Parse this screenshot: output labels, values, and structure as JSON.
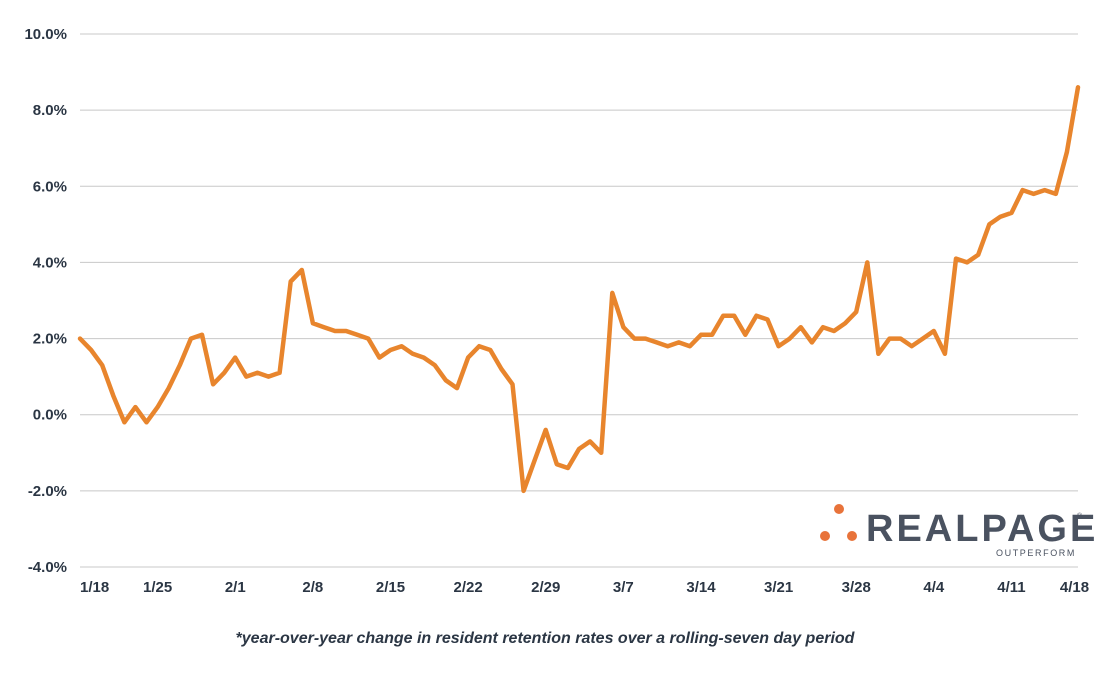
{
  "chart_data": {
    "type": "line",
    "x_tick_labels": [
      "1/18",
      "1/25",
      "2/1",
      "2/8",
      "2/15",
      "2/22",
      "2/29",
      "3/7",
      "3/14",
      "3/21",
      "3/28",
      "4/4",
      "4/11",
      "4/18"
    ],
    "y_tick_labels": [
      "10.0%",
      "8.0%",
      "6.0%",
      "4.0%",
      "2.0%",
      "0.0%",
      "-2.0%",
      "-4.0%"
    ],
    "ylim": [
      -4.0,
      10.0
    ],
    "y_ticks": [
      10,
      8,
      6,
      4,
      2,
      0,
      -2,
      -4
    ],
    "grid": true,
    "series_color": "#e8852d",
    "series": [
      {
        "values": [
          2.0,
          1.7,
          1.3,
          0.5,
          -0.2,
          0.2,
          -0.2,
          0.2,
          0.7,
          1.3,
          2.0,
          2.1,
          0.8,
          1.1,
          1.5,
          1.0,
          1.1,
          1.0,
          1.1,
          3.5,
          3.8,
          2.4,
          2.3,
          2.2,
          2.2,
          2.1,
          2.0,
          1.5,
          1.7,
          1.8,
          1.6,
          1.5,
          1.3,
          0.9,
          0.7,
          1.5,
          1.8,
          1.7,
          1.2,
          0.8,
          -2.0,
          -1.2,
          -0.4,
          -1.3,
          -1.4,
          -0.9,
          -0.7,
          -1.0,
          3.2,
          2.3,
          2.0,
          2.0,
          1.9,
          1.8,
          1.9,
          1.8,
          2.1,
          2.1,
          2.6,
          2.6,
          2.1,
          2.6,
          2.5,
          1.8,
          2.0,
          2.3,
          1.9,
          2.3,
          2.2,
          2.4,
          2.7,
          4.0,
          1.6,
          2.0,
          2.0,
          1.8,
          2.0,
          2.2,
          1.6,
          4.1,
          4.0,
          4.2,
          5.0,
          5.2,
          5.3,
          5.9,
          5.8,
          5.9,
          5.8,
          6.9,
          8.6
        ]
      }
    ],
    "footnote": "*year-over-year change in resident retention rates over a rolling-seven day period"
  },
  "logo": {
    "wordmark": "REALPAGE",
    "tagline": "OUTPERFORM",
    "registered": "®",
    "dot_color": "#e8733a"
  }
}
